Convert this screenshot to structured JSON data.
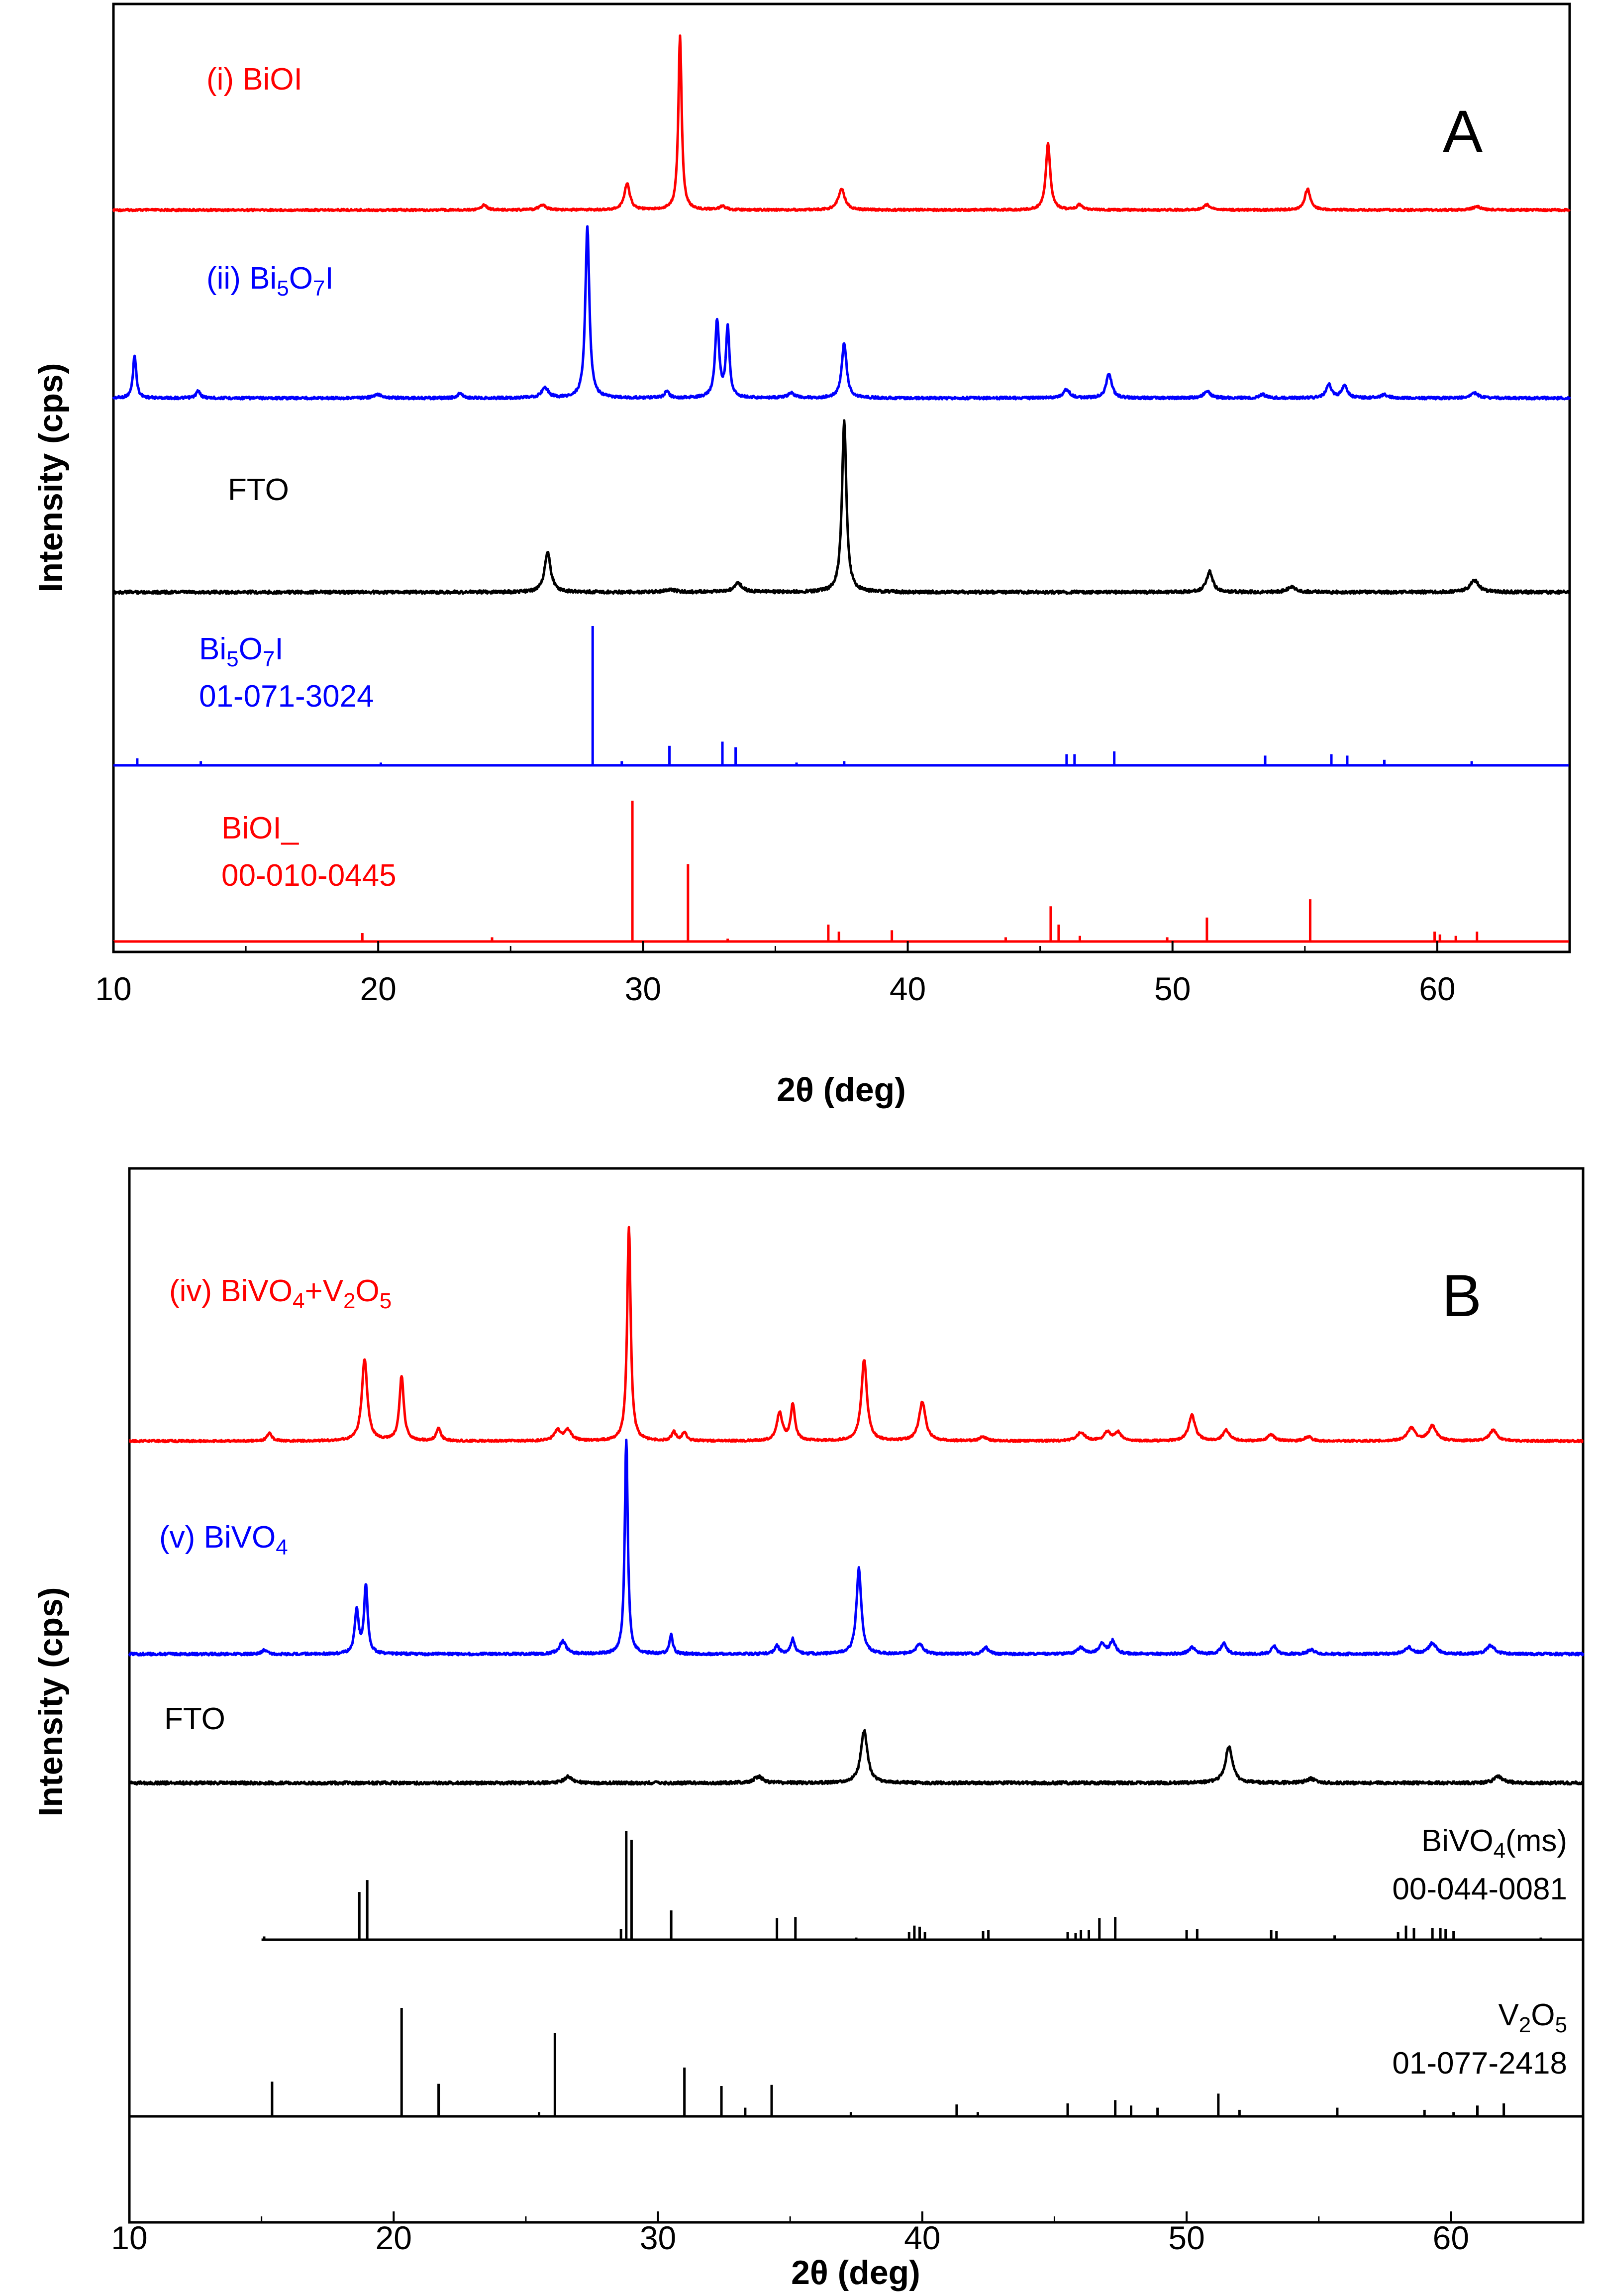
{
  "chart_data": [
    {
      "type": "line",
      "panel": "A",
      "title": "",
      "xlabel": "2θ (deg)",
      "ylabel": "Intensity (cps)",
      "xlim": [
        10,
        65
      ],
      "xticks": [
        10,
        20,
        30,
        40,
        50,
        60
      ],
      "grid": false,
      "traces": [
        {
          "id": "biohi-pattern",
          "kind": "pattern",
          "color": "#ff0000",
          "label": {
            "parts": [
              {
                "t": "(i) BiOI"
              }
            ]
          },
          "baseline": 0,
          "peaks": [
            [
              24.0,
              3,
              0.25
            ],
            [
              26.2,
              3,
              0.3
            ],
            [
              29.4,
              15,
              0.25
            ],
            [
              31.4,
              100,
              0.15
            ],
            [
              33.0,
              2,
              0.3
            ],
            [
              37.5,
              12,
              0.3
            ],
            [
              45.3,
              38,
              0.2
            ],
            [
              46.5,
              3,
              0.25
            ],
            [
              51.3,
              3,
              0.3
            ],
            [
              55.1,
              12,
              0.25
            ],
            [
              61.5,
              2,
              0.35
            ]
          ]
        },
        {
          "id": "bi5o7i-pattern",
          "kind": "pattern",
          "color": "#0000ff",
          "label": {
            "parts": [
              {
                "t": "(ii) Bi"
              },
              {
                "t": "5",
                "sub": true
              },
              {
                "t": "O"
              },
              {
                "t": "7",
                "sub": true
              },
              {
                "t": "I"
              }
            ]
          },
          "baseline": 0,
          "peaks": [
            [
              10.8,
              25,
              0.15
            ],
            [
              13.2,
              4,
              0.2
            ],
            [
              20.0,
              2,
              0.4
            ],
            [
              23.1,
              3,
              0.2
            ],
            [
              26.3,
              6,
              0.3
            ],
            [
              27.9,
              100,
              0.18
            ],
            [
              30.9,
              4,
              0.2
            ],
            [
              32.8,
              45,
              0.18
            ],
            [
              33.2,
              40,
              0.16
            ],
            [
              35.6,
              3,
              0.3
            ],
            [
              37.6,
              32,
              0.22
            ],
            [
              46.0,
              5,
              0.3
            ],
            [
              47.6,
              14,
              0.25
            ],
            [
              51.3,
              4,
              0.3
            ],
            [
              53.4,
              2,
              0.3
            ],
            [
              55.9,
              8,
              0.25
            ],
            [
              56.5,
              7,
              0.25
            ],
            [
              58.0,
              2,
              0.3
            ],
            [
              61.4,
              3,
              0.35
            ]
          ]
        },
        {
          "id": "fto-pattern-a",
          "kind": "pattern",
          "color": "#000000",
          "label": {
            "parts": [
              {
                "t": "FTO"
              }
            ]
          },
          "baseline": 0,
          "peaks": [
            [
              26.4,
              23,
              0.28
            ],
            [
              31.0,
              1.5,
              0.5
            ],
            [
              33.6,
              5,
              0.4
            ],
            [
              37.6,
              100,
              0.2
            ],
            [
              51.4,
              12,
              0.28
            ],
            [
              54.5,
              3,
              0.4
            ],
            [
              61.4,
              7,
              0.4
            ]
          ]
        },
        {
          "id": "bi5o7i-ref",
          "kind": "sticks",
          "color": "#0000ff",
          "label": {
            "parts": [
              {
                "t": "Bi"
              },
              {
                "t": "5",
                "sub": true
              },
              {
                "t": "O"
              },
              {
                "t": "7",
                "sub": true
              },
              {
                "t": "I"
              }
            ],
            "line2": "01-071-3024"
          },
          "sticks": [
            [
              10.9,
              5
            ],
            [
              13.3,
              3
            ],
            [
              20.1,
              2
            ],
            [
              28.1,
              100
            ],
            [
              29.2,
              3
            ],
            [
              31.0,
              14
            ],
            [
              33.0,
              17
            ],
            [
              33.5,
              13
            ],
            [
              35.8,
              2
            ],
            [
              37.6,
              3
            ],
            [
              46.0,
              8
            ],
            [
              46.3,
              8
            ],
            [
              47.8,
              10
            ],
            [
              53.5,
              7
            ],
            [
              56.0,
              8
            ],
            [
              56.6,
              7
            ],
            [
              58.0,
              4
            ],
            [
              61.3,
              3
            ]
          ]
        },
        {
          "id": "bioi-ref",
          "kind": "sticks",
          "color": "#ff0000",
          "label": {
            "parts": [
              {
                "t": "BiOI_"
              }
            ],
            "line2": "00-010-0445"
          },
          "sticks": [
            [
              19.4,
              6
            ],
            [
              24.3,
              3
            ],
            [
              29.6,
              100
            ],
            [
              31.7,
              55
            ],
            [
              33.2,
              2
            ],
            [
              37.0,
              12
            ],
            [
              37.4,
              7
            ],
            [
              39.4,
              8
            ],
            [
              43.7,
              3
            ],
            [
              45.4,
              25
            ],
            [
              45.7,
              12
            ],
            [
              46.5,
              4
            ],
            [
              49.8,
              3
            ],
            [
              51.3,
              17
            ],
            [
              55.2,
              30
            ],
            [
              59.9,
              7
            ],
            [
              60.1,
              5
            ],
            [
              60.7,
              4
            ],
            [
              61.5,
              7
            ]
          ]
        }
      ],
      "panel_letter": "A"
    },
    {
      "type": "line",
      "panel": "B",
      "title": "",
      "xlabel": "2θ (deg)",
      "ylabel": "Intensity (cps)",
      "xlim": [
        10,
        65
      ],
      "xticks": [
        10,
        20,
        30,
        40,
        50,
        60
      ],
      "grid": false,
      "traces": [
        {
          "id": "bivo4-v2o5-pattern",
          "kind": "pattern",
          "color": "#ff0000",
          "label": {
            "parts": [
              {
                "t": "(iv) BiVO"
              },
              {
                "t": "4",
                "sub": true
              },
              {
                "t": "+V"
              },
              {
                "t": "2",
                "sub": true
              },
              {
                "t": "O"
              },
              {
                "t": "5",
                "sub": true
              }
            ]
          },
          "baseline": 0,
          "peaks": [
            [
              15.3,
              4,
              0.2
            ],
            [
              18.9,
              38,
              0.25
            ],
            [
              20.3,
              30,
              0.2
            ],
            [
              21.7,
              6,
              0.2
            ],
            [
              26.2,
              5,
              0.3
            ],
            [
              26.6,
              5,
              0.3
            ],
            [
              28.9,
              100,
              0.16
            ],
            [
              30.6,
              4,
              0.2
            ],
            [
              31.0,
              4,
              0.2
            ],
            [
              34.6,
              13,
              0.25
            ],
            [
              35.1,
              17,
              0.2
            ],
            [
              37.8,
              38,
              0.25
            ],
            [
              40.0,
              18,
              0.3
            ],
            [
              42.3,
              2,
              0.3
            ],
            [
              46.0,
              4,
              0.35
            ],
            [
              47.0,
              4,
              0.3
            ],
            [
              47.4,
              4,
              0.3
            ],
            [
              50.2,
              12,
              0.3
            ],
            [
              51.5,
              5,
              0.3
            ],
            [
              53.2,
              3,
              0.3
            ],
            [
              54.6,
              2,
              0.3
            ],
            [
              58.5,
              6,
              0.35
            ],
            [
              59.3,
              7,
              0.35
            ],
            [
              61.6,
              5,
              0.35
            ]
          ]
        },
        {
          "id": "bivo4-pattern",
          "kind": "pattern",
          "color": "#0000ff",
          "label": {
            "parts": [
              {
                "t": "(v) BiVO"
              },
              {
                "t": "4",
                "sub": true
              }
            ]
          },
          "baseline": 0,
          "peaks": [
            [
              15.1,
              2,
              0.2
            ],
            [
              18.6,
              20,
              0.18
            ],
            [
              18.95,
              32,
              0.16
            ],
            [
              26.4,
              6,
              0.3
            ],
            [
              28.8,
              100,
              0.14
            ],
            [
              30.5,
              9,
              0.15
            ],
            [
              34.5,
              4,
              0.2
            ],
            [
              35.1,
              7,
              0.18
            ],
            [
              37.6,
              40,
              0.22
            ],
            [
              39.9,
              5,
              0.3
            ],
            [
              42.4,
              3,
              0.25
            ],
            [
              46.0,
              3,
              0.3
            ],
            [
              46.8,
              5,
              0.25
            ],
            [
              47.2,
              6,
              0.25
            ],
            [
              50.2,
              3,
              0.3
            ],
            [
              51.4,
              5,
              0.25
            ],
            [
              53.3,
              4,
              0.2
            ],
            [
              54.7,
              2,
              0.3
            ],
            [
              58.4,
              3,
              0.35
            ],
            [
              59.3,
              5,
              0.35
            ],
            [
              61.5,
              4,
              0.35
            ]
          ]
        },
        {
          "id": "fto-pattern-b",
          "kind": "pattern",
          "color": "#000000",
          "label": {
            "parts": [
              {
                "t": "FTO"
              }
            ]
          },
          "baseline": 0,
          "peaks": [
            [
              26.6,
              12,
              0.35
            ],
            [
              33.8,
              12,
              0.4
            ],
            [
              37.8,
              100,
              0.3
            ],
            [
              51.6,
              70,
              0.32
            ],
            [
              54.7,
              8,
              0.4
            ],
            [
              61.8,
              12,
              0.4
            ]
          ]
        },
        {
          "id": "bivo4-ref",
          "kind": "sticks",
          "color": "#000000",
          "xstart": 15.0,
          "label": {
            "parts": [
              {
                "t": "BiVO"
              },
              {
                "t": "4",
                "sub": true
              },
              {
                "t": "(ms)"
              }
            ],
            "line2": "00-044-0081"
          },
          "label_align": "right",
          "sticks": [
            [
              15.1,
              3
            ],
            [
              18.7,
              44
            ],
            [
              19.0,
              55
            ],
            [
              28.6,
              10
            ],
            [
              28.8,
              100
            ],
            [
              29.0,
              92
            ],
            [
              30.5,
              27
            ],
            [
              34.5,
              20
            ],
            [
              35.2,
              21
            ],
            [
              37.5,
              2
            ],
            [
              39.5,
              7
            ],
            [
              39.7,
              13
            ],
            [
              39.9,
              12
            ],
            [
              40.1,
              7
            ],
            [
              42.3,
              8
            ],
            [
              42.5,
              9
            ],
            [
              45.5,
              7
            ],
            [
              45.8,
              6
            ],
            [
              46.0,
              9
            ],
            [
              46.3,
              9
            ],
            [
              46.7,
              20
            ],
            [
              47.3,
              21
            ],
            [
              50.0,
              9
            ],
            [
              50.4,
              10
            ],
            [
              53.2,
              9
            ],
            [
              53.4,
              8
            ],
            [
              55.6,
              4
            ],
            [
              58.0,
              7
            ],
            [
              58.3,
              13
            ],
            [
              58.6,
              11
            ],
            [
              59.3,
              11
            ],
            [
              59.6,
              11
            ],
            [
              59.8,
              10
            ],
            [
              60.1,
              8
            ],
            [
              63.4,
              2
            ]
          ]
        },
        {
          "id": "v2o5-ref",
          "kind": "sticks",
          "color": "#000000",
          "label": {
            "parts": [
              {
                "t": "V"
              },
              {
                "t": "2",
                "sub": true
              },
              {
                "t": "O"
              },
              {
                "t": "5",
                "sub": true
              }
            ],
            "line2": "01-077-2418"
          },
          "label_align": "right",
          "sticks": [
            [
              15.4,
              32
            ],
            [
              20.3,
              100
            ],
            [
              21.7,
              30
            ],
            [
              25.5,
              4
            ],
            [
              26.1,
              77
            ],
            [
              31.0,
              45
            ],
            [
              32.4,
              28
            ],
            [
              33.3,
              8
            ],
            [
              34.3,
              29
            ],
            [
              37.3,
              4
            ],
            [
              41.3,
              11
            ],
            [
              42.1,
              4
            ],
            [
              45.5,
              12
            ],
            [
              47.3,
              15
            ],
            [
              47.9,
              10
            ],
            [
              48.9,
              8
            ],
            [
              51.2,
              21
            ],
            [
              52.0,
              6
            ],
            [
              55.7,
              8
            ],
            [
              59.0,
              6
            ],
            [
              60.1,
              4
            ],
            [
              61.0,
              10
            ],
            [
              62.0,
              12
            ]
          ]
        }
      ],
      "panel_letter": "B"
    }
  ]
}
